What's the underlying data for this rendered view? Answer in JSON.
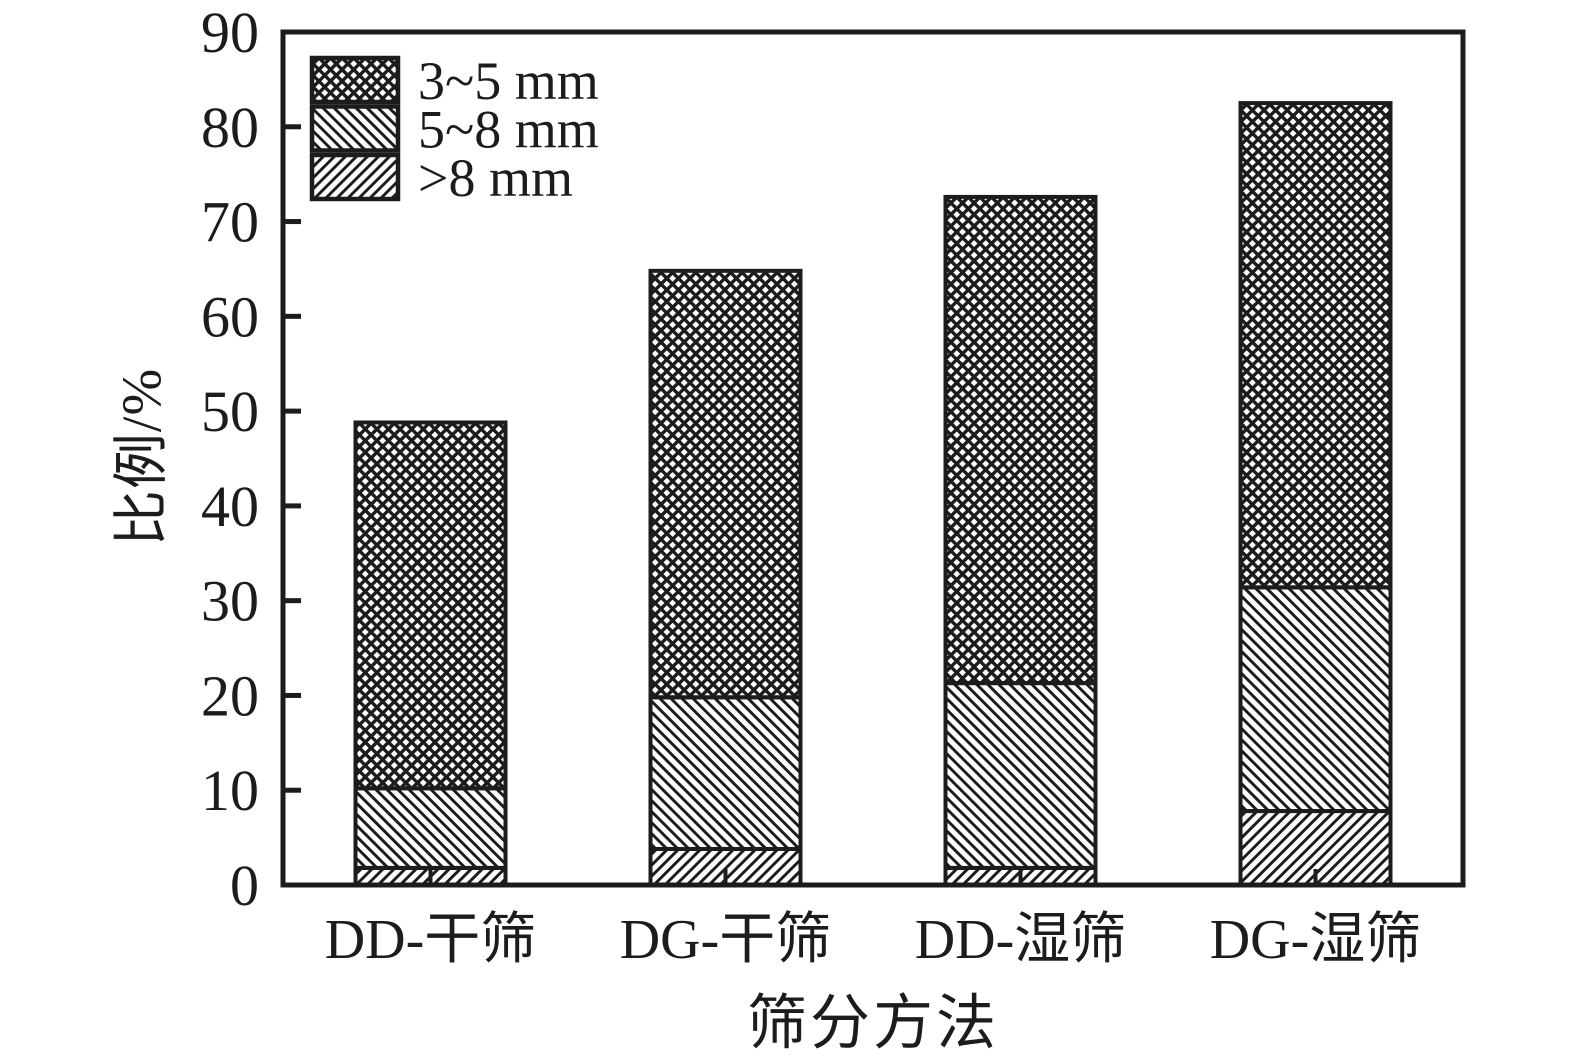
{
  "figure": {
    "background": "#ffffff",
    "ink": "#1c1c1c"
  },
  "chart_data": {
    "type": "bar",
    "stacked": true,
    "title": "",
    "xlabel": "筛分方法",
    "ylabel": "比例/%",
    "categories": [
      "DD-干筛",
      "DG-干筛",
      "DD-湿筛",
      "DG-湿筛"
    ],
    "series": [
      {
        "name": ">8 mm",
        "pattern": "slash",
        "values": [
          1.8,
          3.8,
          1.8,
          7.8
        ]
      },
      {
        "name": "5~8 mm",
        "pattern": "backslash",
        "values": [
          8.4,
          16.0,
          19.5,
          23.6
        ]
      },
      {
        "name": "3~5 mm",
        "pattern": "crosshatch",
        "values": [
          38.6,
          45.0,
          51.3,
          51.1
        ]
      }
    ],
    "stack_totals": [
      48.8,
      64.8,
      72.6,
      82.5
    ],
    "ylim": [
      0,
      90
    ],
    "yticks": [
      0,
      10,
      20,
      30,
      40,
      50,
      60,
      70,
      80,
      90
    ],
    "grid": false,
    "bar_fill": "hatch-patterns-black-on-white",
    "legend": {
      "position": "top-left-inside",
      "items": [
        {
          "label": "3~5 mm",
          "pattern": "crosshatch"
        },
        {
          "label": "5~8 mm",
          "pattern": "backslash"
        },
        {
          "label": ">8 mm",
          "pattern": "slash"
        }
      ]
    }
  }
}
